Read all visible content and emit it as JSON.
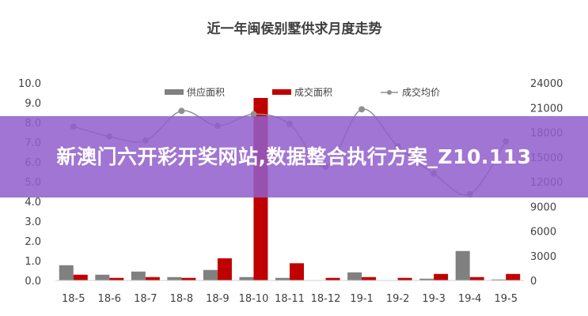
{
  "chart_data": {
    "type": "bar+line",
    "title": "近一年闽侯别墅供求月度走势",
    "categories": [
      "18-5",
      "18-6",
      "18-7",
      "18-8",
      "18-9",
      "18-10",
      "18-11",
      "18-12",
      "19-1",
      "19-2",
      "19-3",
      "19-4",
      "19-5"
    ],
    "left_axis": {
      "ylim": [
        0,
        10
      ],
      "ticks": [
        "0.0",
        "1.0",
        "2.0",
        "3.0",
        "4.0",
        "5.0",
        "6.0",
        "7.0",
        "8.0",
        "9.0",
        "10.0"
      ]
    },
    "right_axis": {
      "ylim": [
        0,
        24000
      ],
      "ticks": [
        "0",
        "3000",
        "6000",
        "9000",
        "12000",
        "15000",
        "18000",
        "21000",
        "24000"
      ]
    },
    "series": [
      {
        "name": "供应面积",
        "type": "bar",
        "axis": "left",
        "color": "#808080",
        "values": [
          0.77,
          0.29,
          0.45,
          0.17,
          0.53,
          0.17,
          0.13,
          0,
          0.41,
          0,
          0.09,
          1.49,
          0.05
        ]
      },
      {
        "name": "成交面积",
        "type": "bar",
        "axis": "left",
        "color": "#c00000",
        "values": [
          0.29,
          0.13,
          0.17,
          0.13,
          1.12,
          9.24,
          0.87,
          0.13,
          0.17,
          0.13,
          0.33,
          0.17,
          0.33
        ]
      },
      {
        "name": "成交均价",
        "type": "line",
        "axis": "right",
        "color": "#909090",
        "values": [
          18700,
          17500,
          17000,
          20600,
          18800,
          20200,
          19000,
          13800,
          20800,
          16300,
          13000,
          10500,
          16900
        ]
      }
    ],
    "legend": "top",
    "grid": false
  },
  "overlay": {
    "text": "新澳门六开彩开奖网站,数据整合执行方案_Z10.113",
    "color": "#925ecc"
  }
}
